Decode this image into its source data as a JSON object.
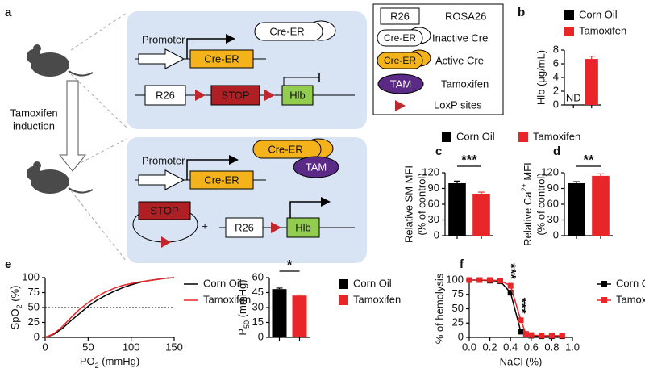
{
  "diagram": {
    "panel": "a",
    "top": {
      "promoter": "Promoter",
      "cre_er": "Cre-ER",
      "inactive": "Cre-ER",
      "r26": "R26",
      "stop": "STOP",
      "hlb": "Hlb"
    },
    "induction": [
      "Tamoxifen",
      "induction"
    ],
    "bottom": {
      "promoter": "Promoter",
      "cre_er": "Cre-ER",
      "active": "Cre-ER",
      "tam": "TAM",
      "stop": "STOP",
      "plus": "+",
      "r26": "R26",
      "hlb": "Hlb"
    },
    "legend": [
      {
        "symbol": "R26",
        "label": "ROSA26"
      },
      {
        "symbol": "Cre-ER",
        "label": "Inactive Cre"
      },
      {
        "symbol": "Cre-ER",
        "label": "Active Cre"
      },
      {
        "symbol": "TAM",
        "label": "Tamoxifen"
      },
      {
        "label": "LoxP sites"
      }
    ]
  },
  "chart_data": [
    {
      "type": "bar",
      "panel": "b",
      "ylabel": [
        "Hlb (μg/mL)"
      ],
      "ylim": [
        0,
        8
      ],
      "yticks": [
        0,
        2,
        4,
        6,
        8
      ],
      "series": [
        {
          "name": "Corn Oil",
          "color": "#000000",
          "values": [
            null
          ],
          "value_labels": [
            "ND"
          ]
        },
        {
          "name": "Tamoxifen",
          "color": "#e8262a",
          "values": [
            6.7
          ],
          "errors": [
            0.4
          ]
        }
      ]
    },
    {
      "type": "bar",
      "panel": "c",
      "ylabel": [
        "Relative SM MFI",
        "(% of control)"
      ],
      "ylim": [
        0,
        120
      ],
      "yticks": [
        0,
        30,
        60,
        90,
        120
      ],
      "significance": "***",
      "series": [
        {
          "name": "Corn Oil",
          "color": "#000000",
          "values": [
            100
          ],
          "errors": [
            4
          ]
        },
        {
          "name": "Tamoxifen",
          "color": "#e8262a",
          "values": [
            80
          ],
          "errors": [
            3
          ]
        }
      ]
    },
    {
      "type": "bar",
      "panel": "d",
      "script": "sup",
      "ylabel": [
        [
          "Relative Ca",
          "2+",
          " MFI"
        ],
        "(% of control)"
      ],
      "ylim": [
        0,
        120
      ],
      "yticks": [
        0,
        30,
        60,
        90,
        120
      ],
      "significance": "**",
      "series": [
        {
          "color": "#000000",
          "values": [
            100
          ],
          "errors": [
            3
          ]
        },
        {
          "color": "#e8262a",
          "values": [
            114
          ],
          "errors": [
            4
          ]
        }
      ]
    },
    {
      "type": "line",
      "panel": "e",
      "script": "sub",
      "ylabel": [
        [
          "SpO",
          "2",
          " (%)"
        ]
      ],
      "xlabel": [
        "PO",
        "2",
        " (mmHg)"
      ],
      "xlim": [
        0,
        150
      ],
      "xticks": [
        0,
        50,
        100,
        150
      ],
      "ylim": [
        0,
        100
      ],
      "yticks": [
        0,
        25,
        50,
        75,
        100
      ],
      "reference_line": 50,
      "x": [
        0,
        10,
        20,
        30,
        40,
        50,
        60,
        70,
        80,
        90,
        100,
        110,
        120,
        130,
        140,
        150
      ],
      "series": [
        {
          "name": "Corn Oil",
          "color": "#000000",
          "values": [
            0,
            5,
            15,
            28,
            40,
            52,
            62,
            70,
            77,
            83,
            88,
            92,
            95,
            97,
            99,
            100
          ]
        },
        {
          "name": "Tamoxifen",
          "color": "#e8262a",
          "values": [
            0,
            6,
            18,
            33,
            47,
            58,
            68,
            76,
            82,
            87,
            90,
            93,
            95,
            97,
            99,
            100
          ]
        }
      ]
    },
    {
      "type": "bar",
      "script": "sub",
      "ylabel": [
        [
          "P",
          "50",
          " (mmHg)"
        ]
      ],
      "ylim": [
        0,
        60
      ],
      "yticks": [
        0,
        15,
        30,
        45,
        60
      ],
      "significance": "*",
      "series": [
        {
          "name": "Corn Oil",
          "color": "#000000",
          "values": [
            48.5
          ],
          "errors": [
            1
          ]
        },
        {
          "name": "Tamoxifen",
          "color": "#e8262a",
          "values": [
            42
          ],
          "errors": [
            0.6
          ]
        }
      ]
    },
    {
      "type": "line",
      "panel": "f",
      "markers": "square",
      "ylabel": [
        "% of hemolysis"
      ],
      "xlabel": "NaCl (%)",
      "xlim": [
        0,
        1
      ],
      "xticks": [
        {
          "value": 0,
          "label": "0.0"
        },
        0.2,
        0.4,
        0.6,
        0.8,
        {
          "value": 1,
          "label": "1.0"
        }
      ],
      "ylim": [
        0,
        100
      ],
      "yticks": [
        0,
        25,
        50,
        75,
        100
      ],
      "annotations": [
        {
          "text": "***",
          "x": 0.4
        },
        {
          "text": "***",
          "x": 0.5
        }
      ],
      "x": [
        0,
        0.1,
        0.2,
        0.3,
        0.4,
        0.5,
        0.55,
        0.6,
        0.7,
        0.8,
        0.9
      ],
      "series": [
        {
          "name": "Corn Oil",
          "color": "#000000",
          "values": [
            100,
            100,
            99,
            98,
            78,
            10,
            5,
            3,
            2,
            2,
            2
          ]
        },
        {
          "name": "Tamoxifen",
          "color": "#e8262a",
          "values": [
            100,
            100,
            100,
            99,
            90,
            30,
            6,
            4,
            3,
            3,
            3
          ]
        }
      ]
    }
  ]
}
